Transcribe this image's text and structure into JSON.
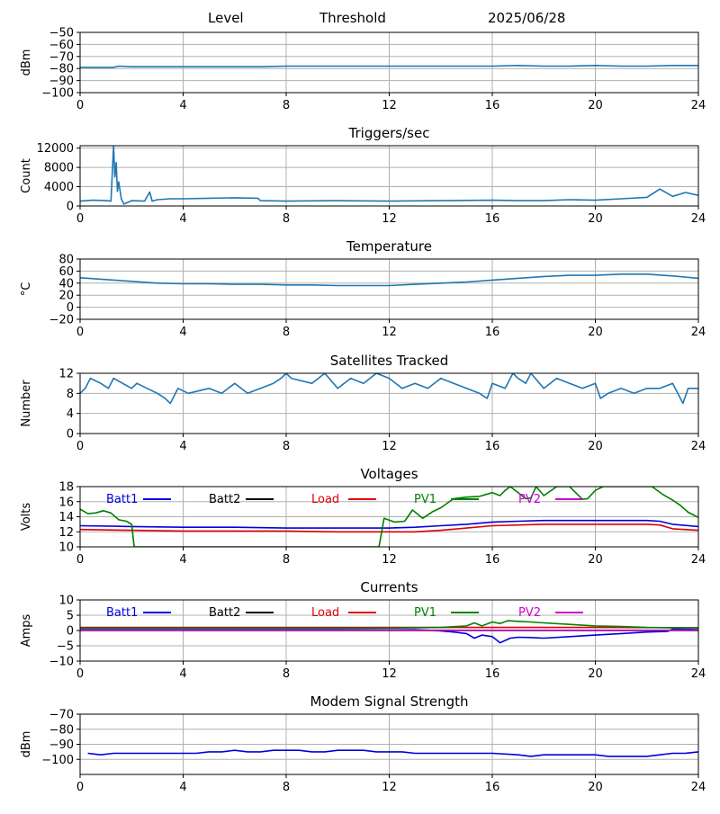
{
  "header": {
    "level": "Level",
    "threshold": "Threshold",
    "date": "2025/06/28"
  },
  "chart_data": [
    {
      "type": "line",
      "title": "",
      "ylabel": "dBm",
      "xlim": [
        0,
        24
      ],
      "ylim": [
        -100,
        -50
      ],
      "xticks": [
        "0",
        "4",
        "8",
        "12",
        "16",
        "20",
        "24"
      ],
      "yticks": [
        -100,
        -90,
        -80,
        -70,
        -60,
        -50
      ],
      "ytick_labels": [
        "−100",
        "−90",
        "−80",
        "−70",
        "−60",
        "−50"
      ],
      "grid": true,
      "series": [
        {
          "name": "",
          "color": "#1f77b4",
          "x": [
            0,
            1.3,
            1.5,
            2,
            3,
            4,
            5,
            6,
            7,
            8,
            10,
            12,
            14,
            16,
            17,
            18,
            19,
            20,
            21,
            22,
            23,
            24
          ],
          "y": [
            -79,
            -79,
            -78,
            -78.5,
            -78.5,
            -78.5,
            -78.5,
            -78.5,
            -78.5,
            -78,
            -78,
            -78,
            -78,
            -78,
            -77.5,
            -78,
            -78,
            -77.5,
            -78,
            -78,
            -77.5,
            -77.5
          ]
        }
      ]
    },
    {
      "type": "line",
      "title": "Triggers/sec",
      "ylabel": "Count",
      "xlim": [
        0,
        24
      ],
      "ylim": [
        0,
        12500
      ],
      "xticks": [
        "0",
        "4",
        "8",
        "12",
        "16",
        "20",
        "24"
      ],
      "yticks": [
        0,
        4000,
        8000,
        12000
      ],
      "ytick_labels": [
        "0",
        "4000",
        "8000",
        "12000"
      ],
      "grid": true,
      "series": [
        {
          "name": "",
          "color": "#1f77b4",
          "x": [
            0,
            0.5,
            1,
            1.2,
            1.3,
            1.35,
            1.4,
            1.45,
            1.5,
            1.6,
            1.7,
            2,
            2.5,
            2.7,
            2.8,
            3,
            3.5,
            4,
            5,
            6,
            6.9,
            7,
            8,
            10,
            12,
            14,
            16,
            17,
            18,
            19,
            20,
            21,
            22,
            22.5,
            23,
            23.5,
            24
          ],
          "y": [
            1000,
            1200,
            1100,
            1000,
            12500,
            6000,
            9000,
            3000,
            5000,
            1500,
            400,
            1100,
            1000,
            2900,
            1000,
            1300,
            1500,
            1500,
            1600,
            1700,
            1600,
            1100,
            1000,
            1100,
            1000,
            1100,
            1200,
            1100,
            1100,
            1300,
            1200,
            1500,
            1800,
            3500,
            2000,
            2800,
            2200
          ]
        }
      ]
    },
    {
      "type": "line",
      "title": "Temperature",
      "ylabel": "°C",
      "xlim": [
        0,
        24
      ],
      "ylim": [
        -20,
        80
      ],
      "xticks": [
        "0",
        "4",
        "8",
        "12",
        "16",
        "20",
        "24"
      ],
      "yticks": [
        -20,
        0,
        20,
        40,
        60,
        80
      ],
      "ytick_labels": [
        "−20",
        "0",
        "20",
        "40",
        "60",
        "80"
      ],
      "grid": true,
      "series": [
        {
          "name": "",
          "color": "#1f77b4",
          "x": [
            0,
            1,
            2,
            3,
            4,
            5,
            6,
            7,
            8,
            9,
            10,
            11,
            12,
            13,
            14,
            15,
            16,
            17,
            18,
            19,
            20,
            21,
            22,
            23,
            24
          ],
          "y": [
            49,
            46,
            43,
            40,
            39,
            39,
            38,
            38,
            37,
            37,
            36,
            36,
            36,
            38,
            40,
            42,
            45,
            48,
            51,
            53,
            53,
            55,
            55,
            52,
            48
          ]
        }
      ]
    },
    {
      "type": "line",
      "title": "Satellites Tracked",
      "ylabel": "Number",
      "xlim": [
        0,
        24
      ],
      "ylim": [
        0,
        12
      ],
      "xticks": [
        "0",
        "4",
        "8",
        "12",
        "16",
        "20",
        "24"
      ],
      "yticks": [
        0,
        4,
        8,
        12
      ],
      "ytick_labels": [
        "0",
        "4",
        "8",
        "12"
      ],
      "grid": true,
      "series": [
        {
          "name": "",
          "color": "#1f77b4",
          "x": [
            0,
            0.2,
            0.4,
            0.8,
            1.1,
            1.3,
            2,
            2.2,
            2.6,
            3,
            3.3,
            3.5,
            3.8,
            4.2,
            5,
            5.5,
            6,
            6.5,
            7,
            7.5,
            7.8,
            8,
            8.2,
            9,
            9.5,
            10,
            10.5,
            11,
            11.5,
            12,
            12.5,
            13,
            13.5,
            14,
            14.5,
            15,
            15.5,
            15.8,
            16,
            16.5,
            16.8,
            17,
            17.3,
            17.5,
            18,
            18.5,
            19,
            19.5,
            20,
            20.2,
            20.5,
            21,
            21.5,
            22,
            22.5,
            23,
            23.2,
            23.4,
            23.6,
            24
          ],
          "y": [
            8,
            9,
            11,
            10,
            9,
            11,
            9,
            10,
            9,
            8,
            7,
            6,
            9,
            8,
            9,
            8,
            10,
            8,
            9,
            10,
            11,
            12,
            11,
            10,
            12,
            9,
            11,
            10,
            12,
            11,
            9,
            10,
            9,
            11,
            10,
            9,
            8,
            7,
            10,
            9,
            12,
            11,
            10,
            12,
            9,
            11,
            10,
            9,
            10,
            7,
            8,
            9,
            8,
            9,
            9,
            10,
            8,
            6,
            9,
            9
          ]
        }
      ]
    },
    {
      "type": "line",
      "title": "Voltages",
      "ylabel": "Volts",
      "xlim": [
        0,
        24
      ],
      "ylim": [
        10,
        18
      ],
      "xticks": [
        "0",
        "4",
        "8",
        "12",
        "16",
        "20",
        "24"
      ],
      "yticks": [
        10,
        12,
        14,
        16,
        18
      ],
      "ytick_labels": [
        "10",
        "12",
        "14",
        "16",
        "18"
      ],
      "grid": true,
      "legend": [
        "Batt1",
        "Batt2",
        "Load",
        "PV1",
        "PV2"
      ],
      "series": [
        {
          "name": "Batt1",
          "color": "#0000dd",
          "x": [
            0,
            2,
            4,
            6,
            8,
            10,
            12,
            13,
            14,
            15,
            16,
            17,
            18,
            20,
            22,
            22.5,
            23,
            24
          ],
          "y": [
            12.8,
            12.7,
            12.6,
            12.6,
            12.5,
            12.5,
            12.5,
            12.6,
            12.8,
            13,
            13.3,
            13.4,
            13.5,
            13.5,
            13.5,
            13.4,
            13,
            12.7
          ]
        },
        {
          "name": "Batt2",
          "color": "#000000",
          "x": [],
          "y": []
        },
        {
          "name": "Load",
          "color": "#dd0000",
          "x": [
            0,
            2,
            4,
            6,
            8,
            10,
            12,
            13,
            14,
            15,
            16,
            17,
            18,
            20,
            22,
            22.5,
            23,
            24
          ],
          "y": [
            12.3,
            12.2,
            12.1,
            12.1,
            12.1,
            12.0,
            12.0,
            12.0,
            12.2,
            12.5,
            12.8,
            12.9,
            13.0,
            13.0,
            13.0,
            12.9,
            12.4,
            12.2
          ]
        },
        {
          "name": "PV1",
          "color": "#008000",
          "x": [
            0,
            0.3,
            0.6,
            0.9,
            1.2,
            1.5,
            1.8,
            2.0,
            2.1,
            11.6,
            11.8,
            12.2,
            12.6,
            12.9,
            13.3,
            13.7,
            14,
            14.5,
            15,
            15.5,
            16,
            16.3,
            16.5,
            16.7,
            17.3,
            17.5,
            17.7,
            18,
            18.5,
            19,
            19.5,
            19.7,
            20,
            20.3,
            20.6,
            21.5,
            22.2,
            22.6,
            23,
            23.3,
            23.6,
            24
          ],
          "y": [
            15.0,
            14.4,
            14.5,
            14.8,
            14.5,
            13.6,
            13.4,
            13.0,
            10,
            10,
            13.8,
            13.3,
            13.4,
            14.9,
            13.8,
            14.7,
            15.2,
            16.4,
            16.6,
            16.7,
            17.2,
            16.8,
            17.5,
            18.0,
            16.4,
            16.5,
            18.0,
            16.8,
            18.0,
            18.0,
            16.3,
            16.4,
            17.5,
            18.0,
            18.0,
            18.0,
            18.0,
            17.0,
            16.2,
            15.5,
            14.6,
            13.9
          ]
        },
        {
          "name": "PV2",
          "color": "#cc00cc",
          "x": [],
          "y": []
        }
      ]
    },
    {
      "type": "line",
      "title": "Currents",
      "ylabel": "Amps",
      "xlim": [
        0,
        24
      ],
      "ylim": [
        -10,
        10
      ],
      "xticks": [
        "0",
        "4",
        "8",
        "12",
        "16",
        "20",
        "24"
      ],
      "yticks": [
        -10,
        -5,
        0,
        5,
        10
      ],
      "ytick_labels": [
        "−10",
        "−5",
        "0",
        "5",
        "10"
      ],
      "grid": true,
      "legend": [
        "Batt1",
        "Batt2",
        "Load",
        "PV1",
        "PV2"
      ],
      "series": [
        {
          "name": "Batt1",
          "color": "#0000dd",
          "x": [
            0,
            2,
            4,
            6,
            8,
            10,
            12,
            13,
            13.8,
            14.5,
            15,
            15.3,
            15.6,
            16,
            16.3,
            16.7,
            17,
            17.5,
            18,
            19,
            20,
            21,
            22,
            22.8,
            23,
            24
          ],
          "y": [
            0.3,
            0.3,
            0.3,
            0.3,
            0.3,
            0.3,
            0.2,
            0.3,
            0,
            -0.5,
            -1,
            -2.5,
            -1.5,
            -2,
            -4,
            -2.5,
            -2.2,
            -2.3,
            -2.5,
            -2,
            -1.5,
            -1,
            -0.5,
            -0.3,
            0.5,
            0.3
          ]
        },
        {
          "name": "Batt2",
          "color": "#000000",
          "x": [
            0,
            4,
            8,
            12,
            16,
            20,
            24
          ],
          "y": [
            0,
            0,
            0,
            0,
            0,
            0,
            0
          ]
        },
        {
          "name": "Load",
          "color": "#dd0000",
          "x": [
            0,
            4,
            8,
            12,
            16,
            20,
            24
          ],
          "y": [
            1.0,
            1.0,
            1.0,
            1.0,
            1.0,
            1.0,
            0.9
          ]
        },
        {
          "name": "PV1",
          "color": "#008000",
          "x": [
            0,
            4,
            8,
            12,
            13,
            14,
            15,
            15.3,
            15.6,
            16,
            16.3,
            16.6,
            17,
            17.5,
            18,
            19,
            20,
            21,
            22,
            23,
            24
          ],
          "y": [
            0.8,
            0.8,
            0.8,
            0.8,
            0.9,
            1.0,
            1.5,
            2.5,
            1.5,
            2.8,
            2.3,
            3.2,
            3.0,
            2.8,
            2.5,
            2.0,
            1.5,
            1.3,
            1.0,
            0.9,
            0.9
          ]
        },
        {
          "name": "PV2",
          "color": "#cc00cc",
          "x": [
            0,
            4,
            8,
            12,
            16,
            20,
            24
          ],
          "y": [
            0.1,
            0.1,
            0.1,
            0.1,
            0.1,
            0.1,
            0.1
          ]
        }
      ]
    },
    {
      "type": "line",
      "title": "Modem Signal Strength",
      "ylabel": "dBm",
      "xlim": [
        0,
        24
      ],
      "ylim": [
        -110,
        -70
      ],
      "xticks": [
        "0",
        "4",
        "8",
        "12",
        "16",
        "20",
        "24"
      ],
      "yticks": [
        -100,
        -90,
        -80,
        -70
      ],
      "ytick_labels": [
        "−100",
        "−90",
        "−80",
        "−70"
      ],
      "grid": true,
      "series": [
        {
          "name": "",
          "color": "#0000dd",
          "x": [
            0.3,
            0.8,
            1.3,
            2,
            3,
            4,
            4.5,
            5,
            5.5,
            6,
            6.5,
            7,
            7.5,
            8,
            8.5,
            9,
            9.5,
            10,
            11,
            11.5,
            12,
            12.5,
            13,
            14,
            15,
            16,
            17,
            17.5,
            18,
            19,
            20,
            20.5,
            21,
            22,
            22.5,
            23,
            23.5,
            24
          ],
          "y": [
            -96,
            -97,
            -96,
            -96,
            -96,
            -96,
            -96,
            -95,
            -95,
            -94,
            -95,
            -95,
            -94,
            -94,
            -94,
            -95,
            -95,
            -94,
            -94,
            -95,
            -95,
            -95,
            -96,
            -96,
            -96,
            -96,
            -97,
            -98,
            -97,
            -97,
            -97,
            -98,
            -98,
            -98,
            -97,
            -96,
            -96,
            -95
          ]
        }
      ]
    }
  ]
}
